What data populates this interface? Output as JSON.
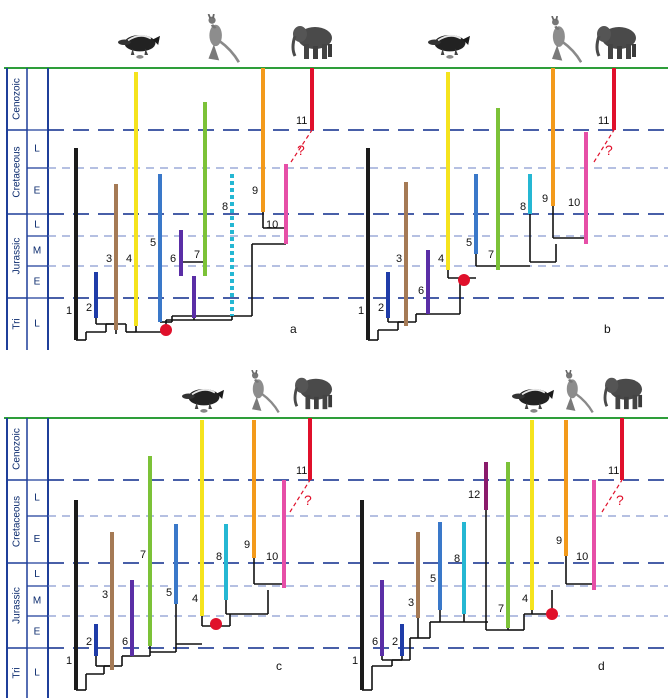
{
  "colors": {
    "topline": "#2e9e3a",
    "frame": "#1f3f9a",
    "major_dash": "#0c2a8c",
    "minor_dash": "#6b80c4",
    "tree": "#111111",
    "node": "#e0102b",
    "question": "#e0102b"
  },
  "eras": {
    "cenozoic": "Cenozoic",
    "cretaceous": "Cretaceous",
    "jurassic": "Jurassic",
    "triassic": "Tri"
  },
  "subperiods": {
    "late": "L",
    "middle": "M",
    "early": "E"
  },
  "question_mark": "?",
  "icons": [
    "platypus-icon",
    "kangaroo-icon",
    "elephant-icon"
  ],
  "lineage_colors": {
    "1": "#1b1b1b",
    "2": "#1f3ca8",
    "3": "#a57a55",
    "4": "#f5e31d",
    "5": "#3a78c9",
    "6": "#5a2ea6",
    "7": "#7cc238",
    "8": "#25b7d3",
    "9": "#f39a1b",
    "10": "#e64fa7",
    "11": "#e0102b",
    "12": "#8a1b6b"
  },
  "panels": [
    {
      "label": "a",
      "lineages": [
        {
          "id": "1",
          "label": "1"
        },
        {
          "id": "2",
          "label": "2"
        },
        {
          "id": "3",
          "label": "3"
        },
        {
          "id": "4",
          "label": "4"
        },
        {
          "id": "5",
          "label": "5"
        },
        {
          "id": "6",
          "label": "6"
        },
        {
          "id": "7",
          "label": "7"
        },
        {
          "id": "8",
          "label": "8"
        },
        {
          "id": "9",
          "label": "9"
        },
        {
          "id": "10",
          "label": "10"
        },
        {
          "id": "11",
          "label": "11"
        }
      ]
    },
    {
      "label": "b",
      "lineages": [
        {
          "id": "1",
          "label": "1"
        },
        {
          "id": "2",
          "label": "2"
        },
        {
          "id": "3",
          "label": "3"
        },
        {
          "id": "4",
          "label": "4"
        },
        {
          "id": "5",
          "label": "5"
        },
        {
          "id": "6",
          "label": "6"
        },
        {
          "id": "7",
          "label": "7"
        },
        {
          "id": "8",
          "label": "8"
        },
        {
          "id": "9",
          "label": "9"
        },
        {
          "id": "10",
          "label": "10"
        },
        {
          "id": "11",
          "label": "11"
        }
      ]
    },
    {
      "label": "c",
      "lineages": [
        {
          "id": "1",
          "label": "1"
        },
        {
          "id": "2",
          "label": "2"
        },
        {
          "id": "3",
          "label": "3"
        },
        {
          "id": "4",
          "label": "4"
        },
        {
          "id": "5",
          "label": "5"
        },
        {
          "id": "6",
          "label": "6"
        },
        {
          "id": "7",
          "label": "7"
        },
        {
          "id": "8",
          "label": "8"
        },
        {
          "id": "9",
          "label": "9"
        },
        {
          "id": "10",
          "label": "10"
        },
        {
          "id": "11",
          "label": "11"
        }
      ]
    },
    {
      "label": "d",
      "lineages": [
        {
          "id": "1",
          "label": "1"
        },
        {
          "id": "2",
          "label": "2"
        },
        {
          "id": "3",
          "label": "3"
        },
        {
          "id": "4",
          "label": "4"
        },
        {
          "id": "5",
          "label": "5"
        },
        {
          "id": "6",
          "label": "6"
        },
        {
          "id": "7",
          "label": "7"
        },
        {
          "id": "8",
          "label": "8"
        },
        {
          "id": "9",
          "label": "9"
        },
        {
          "id": "10",
          "label": "10"
        },
        {
          "id": "11",
          "label": "11"
        },
        {
          "id": "12",
          "label": "12"
        }
      ]
    }
  ]
}
